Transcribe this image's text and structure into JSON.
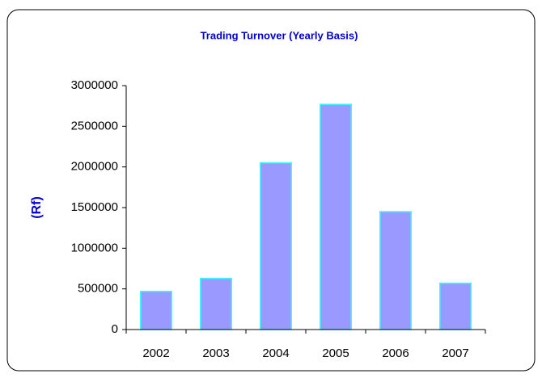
{
  "chart_data": {
    "type": "bar",
    "title": "Trading Turnover (Yearly Basis)",
    "y_label": "(Rf)",
    "categories": [
      "2002",
      "2003",
      "2004",
      "2005",
      "2006",
      "2007"
    ],
    "values": [
      470000,
      630000,
      2050000,
      2770000,
      1450000,
      570000
    ],
    "color": "#9999ff",
    "edge_color": "#33ffff",
    "ylim": [
      0,
      3000000
    ],
    "yticks": [
      0,
      500000,
      1000000,
      1500000,
      2000000,
      2500000,
      3000000
    ],
    "grid": false
  }
}
